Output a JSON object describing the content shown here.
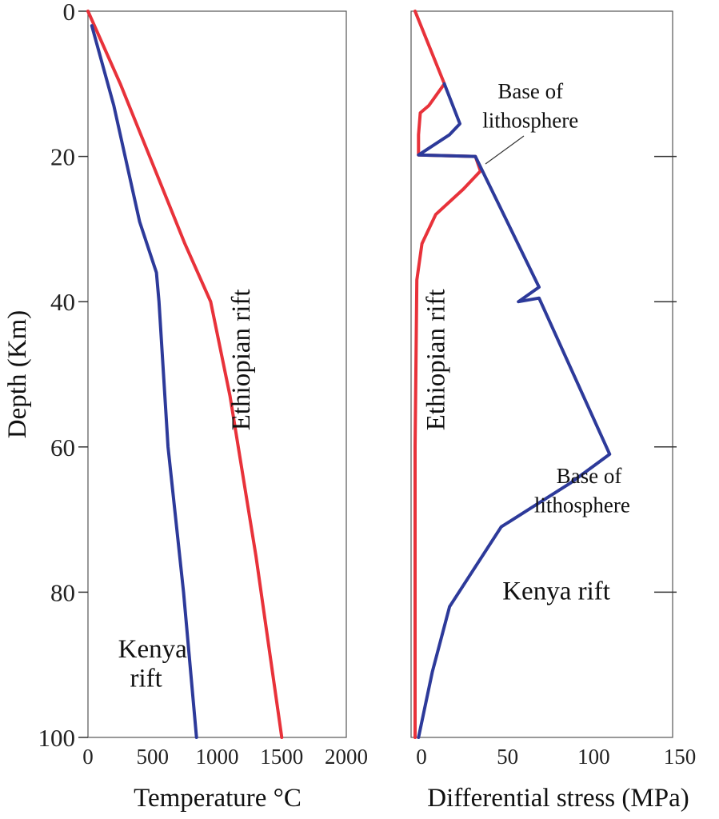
{
  "chart_data": [
    {
      "type": "line",
      "panel": "left",
      "xlabel": "Temperature °C",
      "ylabel": "Depth (Km)",
      "xlim": [
        0,
        2000
      ],
      "ylim": [
        100,
        0
      ],
      "xticks": [
        "0",
        "500",
        "1000",
        "1500",
        "2000"
      ],
      "yticks": [
        "0",
        "20",
        "40",
        "60",
        "80",
        "100"
      ],
      "series": [
        {
          "name": "Ethiopian rift",
          "color": "#e8323a",
          "x": [
            0,
            250,
            500,
            750,
            950,
            1100,
            1300,
            1500
          ],
          "y": [
            0,
            10,
            21,
            32,
            40,
            53,
            75,
            100
          ]
        },
        {
          "name": "Kenya rift",
          "color": "#2d3a9a",
          "x": [
            30,
            200,
            400,
            530,
            550,
            620,
            740,
            840
          ],
          "y": [
            2,
            13,
            29,
            36,
            40,
            60,
            80,
            100
          ]
        }
      ],
      "annotations": [
        {
          "text": "Ethiopian rift",
          "x": 1250,
          "y": 48,
          "rotation": -90
        },
        {
          "text": "Kenya",
          "x": 500,
          "y": 89
        },
        {
          "text": "rift",
          "x": 450,
          "y": 93
        }
      ]
    },
    {
      "type": "line",
      "panel": "right",
      "xlabel": "Differential stress (MPa)",
      "ylabel": "",
      "xlim": [
        0,
        150
      ],
      "ylim": [
        100,
        0
      ],
      "xticks": [
        "0",
        "50",
        "100",
        "150"
      ],
      "yticks_marks": [
        20,
        40,
        60,
        80
      ],
      "series": [
        {
          "name": "Ethiopian rift",
          "color": "#e8323a",
          "x": [
            0,
            17,
            8,
            3,
            2,
            2,
            35,
            38,
            28,
            12,
            4,
            1,
            0,
            0
          ],
          "y": [
            0,
            10,
            13,
            14,
            17,
            19.8,
            20,
            22,
            24.5,
            28,
            32,
            37,
            60,
            100
          ]
        },
        {
          "name": "Kenya rift",
          "color": "#2d3a9a",
          "x": [
            17,
            26,
            20,
            2,
            35,
            72,
            60,
            72,
            113,
            90,
            50,
            20,
            10,
            2
          ],
          "y": [
            10,
            15.5,
            17,
            19.8,
            20,
            38,
            40,
            39.5,
            61,
            65,
            71,
            82,
            91,
            100
          ]
        }
      ],
      "annotations": [
        {
          "text": "Base of",
          "x": 67,
          "y": 12
        },
        {
          "text": "lithosphere",
          "x": 67,
          "y": 16
        },
        {
          "text": "Ethiopian rift",
          "x": 17,
          "y": 48,
          "rotation": -90
        },
        {
          "text": "Base of",
          "x": 101,
          "y": 65
        },
        {
          "text": "lithosphere",
          "x": 97,
          "y": 69
        },
        {
          "text": "Kenya rift",
          "x": 82,
          "y": 81
        }
      ]
    }
  ]
}
